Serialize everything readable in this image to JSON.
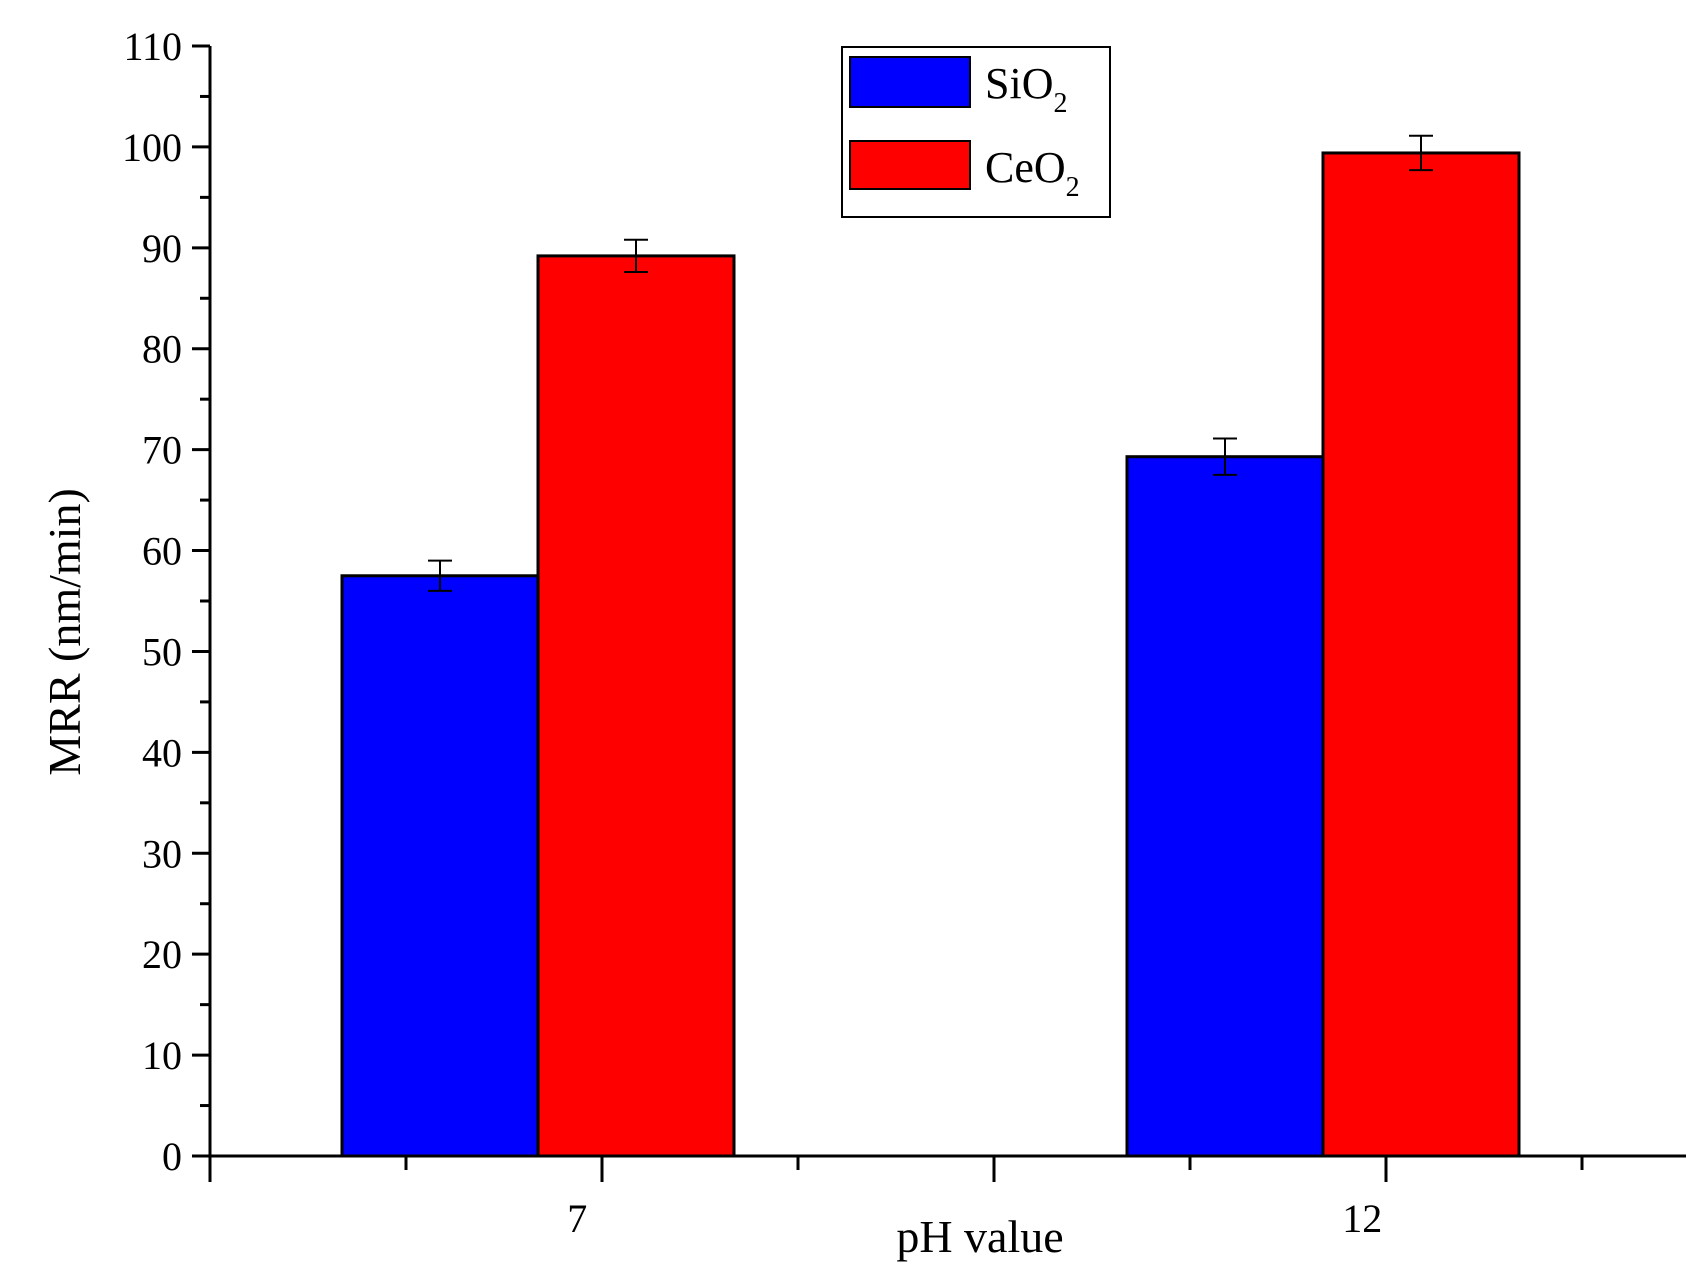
{
  "chart_data": {
    "type": "bar",
    "title": "",
    "xlabel": "pH value",
    "ylabel": "MRR (nm/min)",
    "ylim": [
      0,
      110
    ],
    "yticks": [
      0,
      10,
      20,
      30,
      40,
      50,
      60,
      70,
      80,
      90,
      100,
      110
    ],
    "categories": [
      "7",
      "12"
    ],
    "series": [
      {
        "name": "SiO",
        "subscript": "2",
        "color": "#0000ff",
        "values": [
          57.5,
          69.3
        ],
        "errors": [
          1.5,
          1.8
        ]
      },
      {
        "name": "CeO",
        "subscript": "2",
        "color": "#ff0000",
        "values": [
          89.2,
          99.4
        ],
        "errors": [
          1.6,
          1.7
        ]
      }
    ],
    "legend_position": "top-center"
  }
}
